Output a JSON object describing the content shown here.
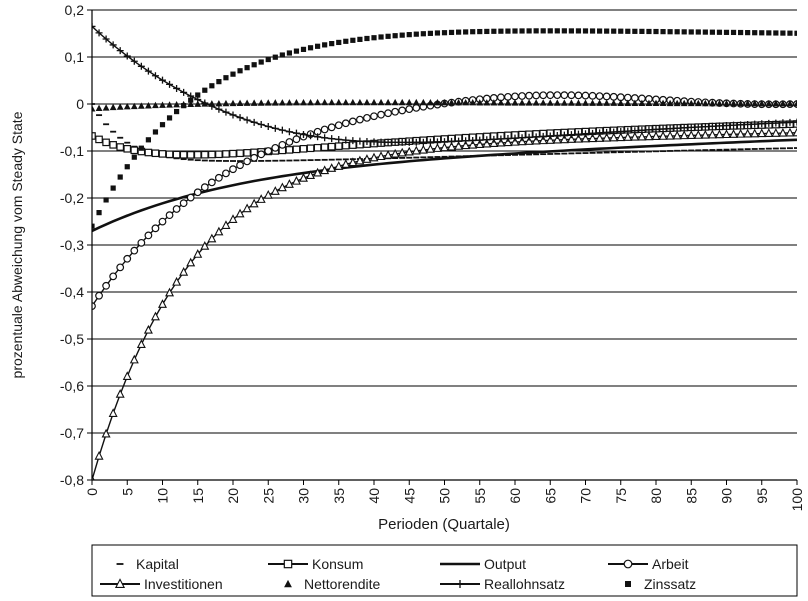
{
  "chart_data": {
    "type": "line",
    "xlabel": "Perioden (Quartale)",
    "ylabel": "prozentuale Abweichung vom Steady State",
    "xlim": [
      0,
      100
    ],
    "ylim": [
      -0.8,
      0.2
    ],
    "xticks": [
      "0",
      "5",
      "10",
      "15",
      "20",
      "25",
      "30",
      "35",
      "40",
      "45",
      "50",
      "55",
      "60",
      "65",
      "70",
      "75",
      "80",
      "85",
      "90",
      "95",
      "100"
    ],
    "yticks": [
      "0,2",
      "0,1",
      "0",
      "-0,1",
      "-0,2",
      "-0,3",
      "-0,4",
      "-0,5",
      "-0,6",
      "-0,7",
      "-0,8"
    ],
    "grid": true,
    "legend_position": "bottom",
    "x": [
      0,
      1,
      2,
      3,
      4,
      5,
      6,
      7,
      8,
      9,
      10,
      11,
      12,
      13,
      14,
      15,
      16,
      17,
      18,
      19,
      20,
      21,
      22,
      23,
      24,
      25,
      26,
      27,
      28,
      29,
      30,
      31,
      32,
      33,
      34,
      35,
      36,
      37,
      38,
      39,
      40,
      41,
      42,
      43,
      44,
      45,
      46,
      47,
      48,
      49,
      50,
      51,
      52,
      53,
      54,
      55,
      56,
      57,
      58,
      59,
      60,
      61,
      62,
      63,
      64,
      65,
      66,
      67,
      68,
      69,
      70,
      71,
      72,
      73,
      74,
      75,
      76,
      77,
      78,
      79,
      80,
      81,
      82,
      83,
      84,
      85,
      86,
      87,
      88,
      89,
      90,
      91,
      92,
      93,
      94,
      95,
      96,
      97,
      98,
      99,
      100
    ],
    "series": [
      {
        "name": "Kapital",
        "marker": "dash",
        "values": [
          0.0,
          -0.0237,
          -0.0431,
          -0.0589,
          -0.0718,
          -0.0823,
          -0.0907,
          -0.0975,
          -0.103,
          -0.1073,
          -0.1107,
          -0.1135,
          -0.1156,
          -0.1173,
          -0.1185,
          -0.1195,
          -0.1202,
          -0.1207,
          -0.121,
          -0.1212,
          -0.1213,
          -0.1214,
          -0.1213,
          -0.1212,
          -0.1211,
          -0.1209,
          -0.1207,
          -0.1205,
          -0.1203,
          -0.12,
          -0.1197,
          -0.1194,
          -0.1191,
          -0.1188,
          -0.1185,
          -0.1181,
          -0.1178,
          -0.1174,
          -0.1171,
          -0.1167,
          -0.1163,
          -0.1159,
          -0.1155,
          -0.1151,
          -0.1147,
          -0.1143,
          -0.1139,
          -0.1135,
          -0.1131,
          -0.1127,
          -0.1123,
          -0.1118,
          -0.1114,
          -0.111,
          -0.1106,
          -0.1102,
          -0.1098,
          -0.1094,
          -0.109,
          -0.1086,
          -0.1082,
          -0.1078,
          -0.1075,
          -0.1071,
          -0.1067,
          -0.1063,
          -0.1059,
          -0.1055,
          -0.1051,
          -0.1047,
          -0.1044,
          -0.104,
          -0.1036,
          -0.1032,
          -0.1028,
          -0.1025,
          -0.1021,
          -0.1017,
          -0.1014,
          -0.101,
          -0.1006,
          -0.1003,
          -0.0999,
          -0.0995,
          -0.0992,
          -0.0988,
          -0.0985,
          -0.0981,
          -0.0978,
          -0.0974,
          -0.0971,
          -0.0967,
          -0.0964,
          -0.096,
          -0.0957,
          -0.0954,
          -0.095,
          -0.0947,
          -0.0944,
          -0.094,
          -0.0937
        ]
      },
      {
        "name": "Konsum",
        "marker": "square",
        "values": [
          -0.068,
          -0.0753,
          -0.0816,
          -0.0869,
          -0.0915,
          -0.0953,
          -0.0985,
          -0.1011,
          -0.1032,
          -0.1048,
          -0.1061,
          -0.107,
          -0.1077,
          -0.108,
          -0.1082,
          -0.1081,
          -0.1079,
          -0.1075,
          -0.107,
          -0.1063,
          -0.1056,
          -0.1048,
          -0.1039,
          -0.1029,
          -0.1019,
          -0.1009,
          -0.0998,
          -0.0987,
          -0.0976,
          -0.0965,
          -0.0953,
          -0.0942,
          -0.0931,
          -0.0919,
          -0.0908,
          -0.0897,
          -0.0886,
          -0.0875,
          -0.0864,
          -0.0853,
          -0.0842,
          -0.0832,
          -0.0821,
          -0.0811,
          -0.0801,
          -0.0791,
          -0.0781,
          -0.0772,
          -0.0762,
          -0.0753,
          -0.0744,
          -0.0735,
          -0.0726,
          -0.0717,
          -0.0708,
          -0.07,
          -0.0691,
          -0.0683,
          -0.0675,
          -0.0667,
          -0.0659,
          -0.0651,
          -0.0644,
          -0.0636,
          -0.0629,
          -0.0621,
          -0.0614,
          -0.0607,
          -0.06,
          -0.0593,
          -0.0587,
          -0.058,
          -0.0573,
          -0.0567,
          -0.0561,
          -0.0554,
          -0.0548,
          -0.0542,
          -0.0536,
          -0.053,
          -0.0525,
          -0.0519,
          -0.0513,
          -0.0508,
          -0.0502,
          -0.0497,
          -0.0492,
          -0.0487,
          -0.0481,
          -0.0476,
          -0.0471,
          -0.0466,
          -0.0462,
          -0.0457,
          -0.0452,
          -0.0448,
          -0.0443,
          -0.0439,
          -0.0434,
          -0.043,
          -0.0425
        ]
      },
      {
        "name": "Output",
        "marker": "line",
        "values": [
          -0.27,
          -0.2629,
          -0.2562,
          -0.2497,
          -0.2435,
          -0.2375,
          -0.2318,
          -0.2264,
          -0.2211,
          -0.2161,
          -0.2113,
          -0.2067,
          -0.2023,
          -0.198,
          -0.194,
          -0.1901,
          -0.1863,
          -0.1827,
          -0.1793,
          -0.176,
          -0.1728,
          -0.1697,
          -0.1668,
          -0.1639,
          -0.1612,
          -0.1586,
          -0.1561,
          -0.1536,
          -0.1513,
          -0.1491,
          -0.1469,
          -0.1448,
          -0.1428,
          -0.1408,
          -0.139,
          -0.1371,
          -0.1354,
          -0.1337,
          -0.132,
          -0.1304,
          -0.1289,
          -0.1274,
          -0.1259,
          -0.1245,
          -0.1232,
          -0.1218,
          -0.1205,
          -0.1193,
          -0.118,
          -0.1168,
          -0.1157,
          -0.1145,
          -0.1134,
          -0.1123,
          -0.1113,
          -0.1102,
          -0.1092,
          -0.1082,
          -0.1072,
          -0.1063,
          -0.1053,
          -0.1044,
          -0.1035,
          -0.1026,
          -0.1017,
          -0.1009,
          -0.1,
          -0.0992,
          -0.0983,
          -0.0975,
          -0.0967,
          -0.0959,
          -0.0951,
          -0.0944,
          -0.0936,
          -0.0928,
          -0.0921,
          -0.0913,
          -0.0906,
          -0.0899,
          -0.0892,
          -0.0884,
          -0.0877,
          -0.087,
          -0.0863,
          -0.0857,
          -0.085,
          -0.0843,
          -0.0836,
          -0.083,
          -0.0823,
          -0.0817,
          -0.081,
          -0.0804,
          -0.0798,
          -0.0791,
          -0.0785,
          -0.0779,
          -0.0773,
          -0.0767,
          -0.0761
        ]
      },
      {
        "name": "Arbeit",
        "marker": "circle",
        "values": [
          -0.43,
          -0.4079,
          -0.3868,
          -0.3667,
          -0.3476,
          -0.3293,
          -0.312,
          -0.2954,
          -0.2796,
          -0.2645,
          -0.2502,
          -0.2365,
          -0.2234,
          -0.211,
          -0.1991,
          -0.1878,
          -0.177,
          -0.1668,
          -0.157,
          -0.1476,
          -0.1387,
          -0.1302,
          -0.1221,
          -0.1144,
          -0.107,
          -0.1,
          -0.0933,
          -0.0869,
          -0.0808,
          -0.0749,
          -0.0694,
          -0.0641,
          -0.059,
          -0.0542,
          -0.0496,
          -0.0452,
          -0.041,
          -0.037,
          -0.0332,
          -0.0295,
          -0.026,
          -0.0227,
          -0.0196,
          -0.0165,
          -0.0137,
          -0.0109,
          -0.0083,
          -0.0058,
          -0.0035,
          -0.0012,
          0.001,
          0.003,
          0.0049,
          0.0068,
          0.0085,
          0.0101,
          0.0116,
          0.0129,
          0.0142,
          0.0152,
          0.0162,
          0.017,
          0.0177,
          0.0182,
          0.0186,
          0.0188,
          0.0189,
          0.0188,
          0.0187,
          0.0183,
          0.0179,
          0.0174,
          0.0168,
          0.0161,
          0.0153,
          0.0145,
          0.0136,
          0.0127,
          0.0118,
          0.0108,
          0.0098,
          0.0089,
          0.0079,
          0.0069,
          0.006,
          0.0051,
          0.0043,
          0.0035,
          0.0028,
          0.0021,
          0.0015,
          0.001,
          0.0005,
          0.0001,
          -0.0002,
          -0.0004,
          -0.0005,
          -0.0005,
          -0.0005,
          -0.0003,
          -0.0001
        ]
      },
      {
        "name": "Investitionen",
        "marker": "triangle-open",
        "values": [
          -0.8,
          -0.7493,
          -0.7021,
          -0.6583,
          -0.6175,
          -0.5796,
          -0.5444,
          -0.5116,
          -0.481,
          -0.4527,
          -0.4263,
          -0.4018,
          -0.379,
          -0.3578,
          -0.338,
          -0.3197,
          -0.3026,
          -0.2868,
          -0.272,
          -0.2583,
          -0.2456,
          -0.2337,
          -0.2227,
          -0.2124,
          -0.2029,
          -0.194,
          -0.1857,
          -0.178,
          -0.1708,
          -0.1641,
          -0.1579,
          -0.1521,
          -0.1467,
          -0.1416,
          -0.1369,
          -0.1325,
          -0.1284,
          -0.1246,
          -0.121,
          -0.1177,
          -0.1146,
          -0.1117,
          -0.109,
          -0.1065,
          -0.1041,
          -0.1019,
          -0.0998,
          -0.0979,
          -0.0961,
          -0.0944,
          -0.0928,
          -0.0913,
          -0.0899,
          -0.0885,
          -0.0873,
          -0.0861,
          -0.085,
          -0.0839,
          -0.0829,
          -0.082,
          -0.0811,
          -0.0802,
          -0.0794,
          -0.0786,
          -0.0779,
          -0.0772,
          -0.0765,
          -0.0759,
          -0.0752,
          -0.0746,
          -0.0741,
          -0.0735,
          -0.073,
          -0.0724,
          -0.0719,
          -0.0714,
          -0.0709,
          -0.0704,
          -0.07,
          -0.0695,
          -0.0691,
          -0.0686,
          -0.0682,
          -0.0678,
          -0.0673,
          -0.0669,
          -0.0665,
          -0.0661,
          -0.0657,
          -0.0653,
          -0.0649,
          -0.0645,
          -0.0641,
          -0.0638,
          -0.0634,
          -0.063,
          -0.0626,
          -0.0623,
          -0.0619,
          -0.0615,
          -0.0612
        ]
      },
      {
        "name": "Nettorendite",
        "marker": "triangle-filled",
        "values": [
          -0.01,
          -0.009,
          -0.0081,
          -0.0072,
          -0.0064,
          -0.0056,
          -0.0049,
          -0.0042,
          -0.0035,
          -0.0029,
          -0.0024,
          -0.0018,
          -0.0013,
          -0.0009,
          -0.0005,
          -0.0001,
          0.0003,
          0.0006,
          0.0009,
          0.0012,
          0.0015,
          0.0017,
          0.0019,
          0.0021,
          0.0023,
          0.0025,
          0.0026,
          0.0027,
          0.0028,
          0.0029,
          0.003,
          0.0031,
          0.0032,
          0.0032,
          0.0032,
          0.0033,
          0.0033,
          0.0033,
          0.0033,
          0.0033,
          0.0033,
          0.0033,
          0.0033,
          0.0033,
          0.0033,
          0.0032,
          0.0032,
          0.0032,
          0.0031,
          0.0031,
          0.0031,
          0.003,
          0.003,
          0.0029,
          0.0029,
          0.0028,
          0.0028,
          0.0027,
          0.0027,
          0.0026,
          0.0026,
          0.0025,
          0.0025,
          0.0024,
          0.0024,
          0.0023,
          0.0023,
          0.0022,
          0.0022,
          0.0021,
          0.0021,
          0.002,
          0.002,
          0.0019,
          0.0019,
          0.0018,
          0.0018,
          0.0017,
          0.0017,
          0.0016,
          0.0016,
          0.0016,
          0.0015,
          0.0015,
          0.0014,
          0.0014,
          0.0014,
          0.0013,
          0.0013,
          0.0012,
          0.0012,
          0.0012,
          0.0011,
          0.0011,
          0.0011,
          0.001,
          0.001,
          0.001,
          0.0009,
          0.0009,
          0.0009
        ]
      },
      {
        "name": "Reallohnsatz",
        "marker": "plus",
        "values": [
          0.165,
          0.1514,
          0.1383,
          0.1257,
          0.1136,
          0.1021,
          0.0909,
          0.0802,
          0.07,
          0.0601,
          0.0507,
          0.0417,
          0.0331,
          0.0248,
          0.0169,
          0.0094,
          0.0022,
          -0.0047,
          -0.0112,
          -0.0174,
          -0.0233,
          -0.0289,
          -0.0341,
          -0.039,
          -0.0436,
          -0.0479,
          -0.0519,
          -0.0556,
          -0.059,
          -0.0621,
          -0.0649,
          -0.0675,
          -0.0698,
          -0.0719,
          -0.0737,
          -0.0754,
          -0.0768,
          -0.078,
          -0.079,
          -0.0798,
          -0.0805,
          -0.081,
          -0.0814,
          -0.0816,
          -0.0817,
          -0.0817,
          -0.0815,
          -0.0813,
          -0.081,
          -0.0806,
          -0.0801,
          -0.0795,
          -0.0789,
          -0.0783,
          -0.0776,
          -0.0768,
          -0.076,
          -0.0752,
          -0.0744,
          -0.0735,
          -0.0726,
          -0.0717,
          -0.0708,
          -0.0699,
          -0.069,
          -0.068,
          -0.0671,
          -0.0661,
          -0.0652,
          -0.0642,
          -0.0633,
          -0.0624,
          -0.0614,
          -0.0605,
          -0.0596,
          -0.0586,
          -0.0577,
          -0.0568,
          -0.0559,
          -0.055,
          -0.0541,
          -0.0532,
          -0.0524,
          -0.0515,
          -0.0507,
          -0.0498,
          -0.049,
          -0.0482,
          -0.0474,
          -0.0466,
          -0.0458,
          -0.045,
          -0.0443,
          -0.0435,
          -0.0428,
          -0.042,
          -0.0413,
          -0.0406,
          -0.0399,
          -0.0392,
          -0.0385
        ]
      },
      {
        "name": "Zinssatz",
        "marker": "square-filled",
        "values": [
          -0.26,
          -0.2311,
          -0.2041,
          -0.1789,
          -0.1554,
          -0.1335,
          -0.1131,
          -0.094,
          -0.0762,
          -0.0595,
          -0.044,
          -0.0296,
          -0.0161,
          -0.0035,
          0.0082,
          0.0191,
          0.0293,
          0.0388,
          0.0476,
          0.0559,
          0.0635,
          0.0707,
          0.0773,
          0.0835,
          0.0893,
          0.0946,
          0.0996,
          0.1042,
          0.1085,
          0.1125,
          0.1162,
          0.1196,
          0.1228,
          0.1258,
          0.1285,
          0.131,
          0.1334,
          0.1355,
          0.1375,
          0.1394,
          0.141,
          0.1426,
          0.144,
          0.1453,
          0.1465,
          0.1476,
          0.1486,
          0.1495,
          0.1503,
          0.1511,
          0.1517,
          0.1523,
          0.1529,
          0.1533,
          0.1538,
          0.1541,
          0.1544,
          0.1547,
          0.1549,
          0.1551,
          0.1553,
          0.1554,
          0.1555,
          0.1556,
          0.1556,
          0.1556,
          0.1556,
          0.1556,
          0.1555,
          0.1555,
          0.1554,
          0.1553,
          0.1552,
          0.1551,
          0.155,
          0.1549,
          0.1547,
          0.1546,
          0.1545,
          0.1543,
          0.1542,
          0.154,
          0.1538,
          0.1537,
          0.1535,
          0.1533,
          0.1532,
          0.153,
          0.1528,
          0.1526,
          0.1524,
          0.1523,
          0.1521,
          0.1519,
          0.1517,
          0.1515,
          0.1513,
          0.1511,
          0.1509,
          0.1507,
          0.1505
        ]
      }
    ]
  }
}
